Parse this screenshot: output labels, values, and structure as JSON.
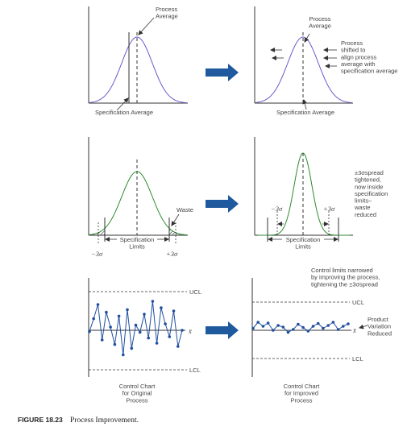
{
  "colors": {
    "normal_curve": "#6a5acd",
    "tight_curve": "#2e8b2e",
    "control_line": "#1f4f9f",
    "arrow_fill": "#1f5a9e",
    "axis": "#333333",
    "text": "#444444"
  },
  "panel1": {
    "process_average": "Process\nAverage",
    "spec_average": "Specification Average"
  },
  "panel2": {
    "process_average": "Process\nAverage",
    "shift_note": "Process\nshifted to\nalign process\naverage with\nspecification average",
    "spec_average": "Specification Average"
  },
  "panel3": {
    "waste": "Waste",
    "spec_limits": "Specification\nLimits",
    "minus3s": "−3σ",
    "plus3s": "+3σ"
  },
  "panel4": {
    "minus3s": "−3σ",
    "plus3s": "+3σ",
    "spread_note": "±3σspread\ntightened,\nnow inside\nspecification\nlimits–\nwaste\nreduced",
    "spec_limits": "Specification\nLimits"
  },
  "panel5": {
    "ucl": "UCL",
    "lcl": "LCL",
    "xbar": "x̄",
    "caption": "Control Chart\nfor Original\nProcess",
    "series": [
      0.48,
      0.68,
      0.9,
      0.35,
      0.78,
      0.55,
      0.28,
      0.72,
      0.12,
      0.82,
      0.22,
      0.58,
      0.47,
      0.75,
      0.38,
      0.95,
      0.3,
      0.85,
      0.6,
      0.4,
      0.8,
      0.25,
      0.5
    ]
  },
  "panel6": {
    "narrow_note": "Control limits narrowed\nby improving the process,\ntightening the ±3σspread",
    "ucl": "UCL",
    "lcl": "LCL",
    "xbar": "x̄",
    "variation_note": "Product\nVariation\nReduced",
    "caption": "Control Chart\nfor Improved\nProcess",
    "series": [
      0.55,
      0.7,
      0.6,
      0.68,
      0.5,
      0.62,
      0.58,
      0.45,
      0.52,
      0.65,
      0.57,
      0.48,
      0.6,
      0.67,
      0.55,
      0.62,
      0.7,
      0.52,
      0.6,
      0.66
    ]
  },
  "figure_caption": {
    "label": "FIGURE 18.23",
    "text": "Process Improvement."
  }
}
